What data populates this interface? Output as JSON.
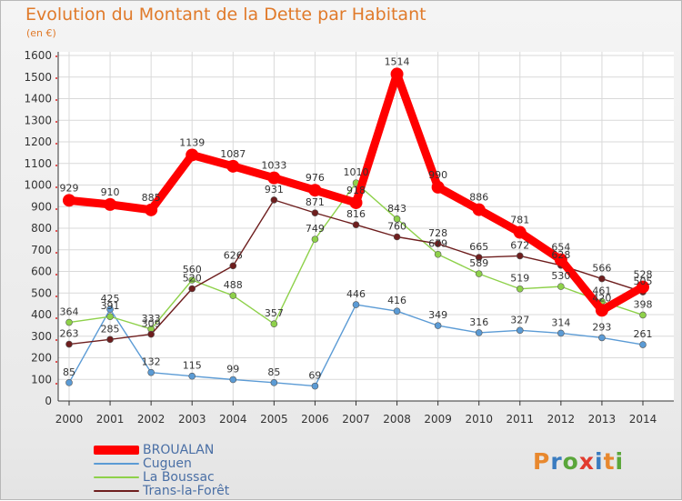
{
  "header": {
    "title": "Evolution du Montant de la Dette par Habitant",
    "unit": "(en €)"
  },
  "logo": {
    "text": "Proxiti",
    "letter_colors": [
      "#e8882e",
      "#3a7cc0",
      "#5aa63a",
      "#e23b2e",
      "#3a7cc0",
      "#e8882e",
      "#5aa63a"
    ]
  },
  "chart_data": {
    "type": "line",
    "title": "Evolution du Montant de la Dette par Habitant",
    "ylabel": "(en €)",
    "xlabel": "",
    "x": [
      "2000",
      "2001",
      "2002",
      "2003",
      "2004",
      "2005",
      "2006",
      "2007",
      "2008",
      "2009",
      "2010",
      "2011",
      "2012",
      "2013",
      "2014"
    ],
    "ylim": [
      0,
      1600
    ],
    "yticks": [
      0,
      100,
      200,
      300,
      400,
      500,
      600,
      700,
      800,
      900,
      1000,
      1100,
      1200,
      1300,
      1400,
      1500,
      1600
    ],
    "grid": true,
    "legend_position": "bottom-left",
    "series": [
      {
        "name": "BROUALAN",
        "color": "#ff0000",
        "values": [
          929,
          910,
          885,
          1139,
          1087,
          1033,
          976,
          918,
          1514,
          990,
          886,
          781,
          654,
          420,
          528
        ]
      },
      {
        "name": "Cuguen",
        "color": "#5b9bd5",
        "values": [
          85,
          425,
          132,
          115,
          99,
          85,
          69,
          446,
          416,
          349,
          316,
          327,
          314,
          293,
          261
        ]
      },
      {
        "name": "La Boussac",
        "color": "#8ed14a",
        "values": [
          364,
          391,
          333,
          560,
          488,
          357,
          749,
          1010,
          843,
          679,
          589,
          519,
          530,
          461,
          398
        ]
      },
      {
        "name": "Trans-la-Forêt",
        "color": "#6e1e1e",
        "values": [
          263,
          285,
          309,
          520,
          626,
          931,
          871,
          816,
          760,
          728,
          665,
          672,
          628,
          566,
          505
        ]
      }
    ]
  }
}
